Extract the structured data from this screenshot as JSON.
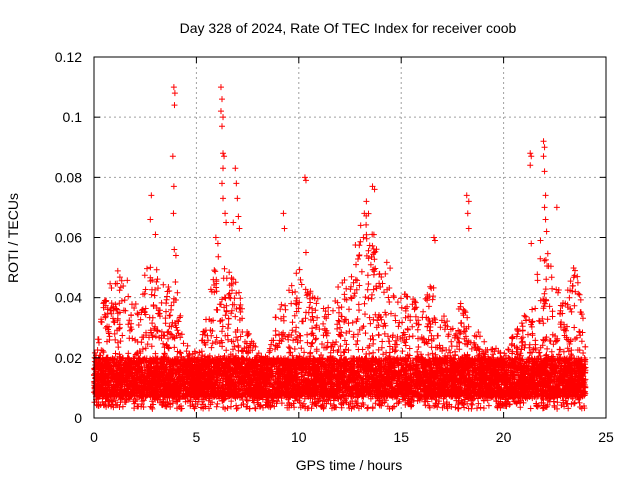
{
  "chart_data": {
    "type": "scatter",
    "title": "Day 328 of 2024, Rate Of TEC Index for receiver coob",
    "xlabel": "GPS time / hours",
    "ylabel": "ROTI / TECUs",
    "xlim": [
      0,
      25
    ],
    "ylim": [
      0,
      0.12
    ],
    "x_ticks": [
      0,
      5,
      10,
      15,
      20,
      25
    ],
    "x_tick_labels": [
      "0",
      "5",
      "10",
      "15",
      "20",
      "25"
    ],
    "y_ticks": [
      0,
      0.02,
      0.04,
      0.06,
      0.08,
      0.1,
      0.12
    ],
    "y_tick_labels": [
      "0",
      "0.02",
      "0.04",
      "0.06",
      "0.08",
      "0.1",
      "0.12"
    ],
    "grid": true,
    "marker": "plus",
    "color": "#ff0000",
    "data_x_range": [
      0,
      24
    ],
    "baseline_band": [
      0.007,
      0.02
    ],
    "activity_envelope": [
      [
        0,
        0.022
      ],
      [
        0.5,
        0.04
      ],
      [
        1,
        0.05
      ],
      [
        1.5,
        0.048
      ],
      [
        2,
        0.04
      ],
      [
        2.5,
        0.05
      ],
      [
        3,
        0.052
      ],
      [
        3.5,
        0.045
      ],
      [
        4,
        0.048
      ],
      [
        4.5,
        0.025
      ],
      [
        5,
        0.022
      ],
      [
        5.5,
        0.035
      ],
      [
        6,
        0.055
      ],
      [
        6.5,
        0.05
      ],
      [
        7,
        0.045
      ],
      [
        7.5,
        0.03
      ],
      [
        8,
        0.022
      ],
      [
        8.5,
        0.02
      ],
      [
        9,
        0.04
      ],
      [
        9.5,
        0.045
      ],
      [
        10,
        0.05
      ],
      [
        10.5,
        0.045
      ],
      [
        11,
        0.04
      ],
      [
        11.5,
        0.038
      ],
      [
        12,
        0.045
      ],
      [
        12.5,
        0.05
      ],
      [
        13,
        0.065
      ],
      [
        13.5,
        0.07
      ],
      [
        14,
        0.055
      ],
      [
        14.5,
        0.05
      ],
      [
        15,
        0.045
      ],
      [
        15.5,
        0.04
      ],
      [
        16,
        0.04
      ],
      [
        16.5,
        0.045
      ],
      [
        17,
        0.035
      ],
      [
        17.5,
        0.03
      ],
      [
        18,
        0.04
      ],
      [
        18.5,
        0.03
      ],
      [
        19,
        0.028
      ],
      [
        19.5,
        0.025
      ],
      [
        20,
        0.022
      ],
      [
        20.5,
        0.028
      ],
      [
        21,
        0.035
      ],
      [
        21.5,
        0.045
      ],
      [
        22,
        0.06
      ],
      [
        22.5,
        0.045
      ],
      [
        23,
        0.04
      ],
      [
        23.5,
        0.052
      ],
      [
        24,
        0.03
      ]
    ],
    "outliers": [
      {
        "x": 3.9,
        "y": 0.11
      },
      {
        "x": 3.95,
        "y": 0.108
      },
      {
        "x": 3.93,
        "y": 0.104
      },
      {
        "x": 3.85,
        "y": 0.087
      },
      {
        "x": 3.9,
        "y": 0.077
      },
      {
        "x": 3.88,
        "y": 0.068
      },
      {
        "x": 3.92,
        "y": 0.056
      },
      {
        "x": 4.0,
        "y": 0.054
      },
      {
        "x": 2.8,
        "y": 0.074
      },
      {
        "x": 2.75,
        "y": 0.066
      },
      {
        "x": 3.0,
        "y": 0.061
      },
      {
        "x": 6.2,
        "y": 0.11
      },
      {
        "x": 6.25,
        "y": 0.106
      },
      {
        "x": 6.2,
        "y": 0.102
      },
      {
        "x": 6.3,
        "y": 0.1
      },
      {
        "x": 6.25,
        "y": 0.097
      },
      {
        "x": 6.3,
        "y": 0.088
      },
      {
        "x": 6.35,
        "y": 0.087
      },
      {
        "x": 6.3,
        "y": 0.083
      },
      {
        "x": 6.25,
        "y": 0.078
      },
      {
        "x": 6.3,
        "y": 0.073
      },
      {
        "x": 6.4,
        "y": 0.068
      },
      {
        "x": 6.45,
        "y": 0.065
      },
      {
        "x": 6.9,
        "y": 0.083
      },
      {
        "x": 6.95,
        "y": 0.078
      },
      {
        "x": 7.0,
        "y": 0.073
      },
      {
        "x": 6.8,
        "y": 0.065
      },
      {
        "x": 7.05,
        "y": 0.067
      },
      {
        "x": 7.1,
        "y": 0.063
      },
      {
        "x": 5.95,
        "y": 0.06
      },
      {
        "x": 6.05,
        "y": 0.058
      },
      {
        "x": 9.25,
        "y": 0.068
      },
      {
        "x": 9.3,
        "y": 0.063
      },
      {
        "x": 10.3,
        "y": 0.08
      },
      {
        "x": 10.35,
        "y": 0.079
      },
      {
        "x": 10.35,
        "y": 0.055
      },
      {
        "x": 13.6,
        "y": 0.077
      },
      {
        "x": 13.7,
        "y": 0.076
      },
      {
        "x": 13.3,
        "y": 0.072
      },
      {
        "x": 13.2,
        "y": 0.068
      },
      {
        "x": 16.6,
        "y": 0.06
      },
      {
        "x": 16.65,
        "y": 0.059
      },
      {
        "x": 18.2,
        "y": 0.074
      },
      {
        "x": 18.3,
        "y": 0.072
      },
      {
        "x": 18.25,
        "y": 0.068
      },
      {
        "x": 18.3,
        "y": 0.063
      },
      {
        "x": 21.3,
        "y": 0.088
      },
      {
        "x": 21.35,
        "y": 0.087
      },
      {
        "x": 21.3,
        "y": 0.084
      },
      {
        "x": 21.35,
        "y": 0.058
      },
      {
        "x": 21.95,
        "y": 0.092
      },
      {
        "x": 22.0,
        "y": 0.09
      },
      {
        "x": 21.95,
        "y": 0.087
      },
      {
        "x": 22.0,
        "y": 0.082
      },
      {
        "x": 22.05,
        "y": 0.074
      },
      {
        "x": 22.0,
        "y": 0.07
      },
      {
        "x": 22.05,
        "y": 0.066
      },
      {
        "x": 22.1,
        "y": 0.062
      },
      {
        "x": 22.6,
        "y": 0.07
      },
      {
        "x": 21.8,
        "y": 0.059
      }
    ]
  }
}
